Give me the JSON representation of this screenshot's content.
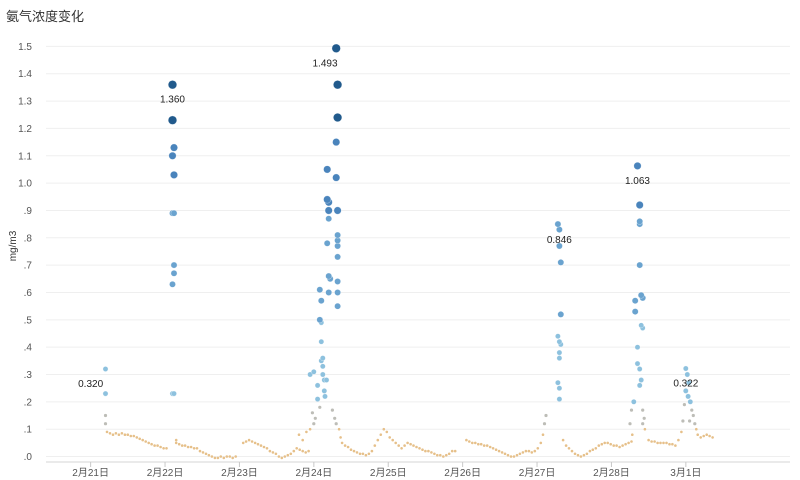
{
  "chart_data": {
    "type": "scatter",
    "title": "氨气浓度变化",
    "ylabel": "mg/m3",
    "xlabel": "",
    "ylim": [
      -0.02,
      1.56
    ],
    "xlim": [
      -0.6,
      9.4
    ],
    "grid": true,
    "legend": "none",
    "colors": {
      "low": "#e6c08a",
      "mid": "#bdbdb7",
      "light_blue": "#8dc1de",
      "blue": "#4a84bc",
      "dark_blue": "#215a8c"
    },
    "y_ticks": [
      {
        "value": 0.0,
        "label": ".0"
      },
      {
        "value": 0.1,
        "label": ".1"
      },
      {
        "value": 0.2,
        "label": ".2"
      },
      {
        "value": 0.3,
        "label": ".3"
      },
      {
        "value": 0.4,
        "label": ".4"
      },
      {
        "value": 0.5,
        "label": ".5"
      },
      {
        "value": 0.6,
        "label": ".6"
      },
      {
        "value": 0.7,
        "label": ".7"
      },
      {
        "value": 0.8,
        "label": ".8"
      },
      {
        "value": 0.9,
        "label": ".9"
      },
      {
        "value": 1.0,
        "label": "1.0"
      },
      {
        "value": 1.1,
        "label": "1.1"
      },
      {
        "value": 1.2,
        "label": "1.2"
      },
      {
        "value": 1.3,
        "label": "1.3"
      },
      {
        "value": 1.4,
        "label": "1.4"
      },
      {
        "value": 1.5,
        "label": "1.5"
      }
    ],
    "x_ticks": [
      {
        "value": 0,
        "label": "2月21日"
      },
      {
        "value": 1,
        "label": "2月22日"
      },
      {
        "value": 2,
        "label": "2月23日"
      },
      {
        "value": 3,
        "label": "2月24日"
      },
      {
        "value": 4,
        "label": "2月25日"
      },
      {
        "value": 5,
        "label": "2月26日"
      },
      {
        "value": 6,
        "label": "2月27日"
      },
      {
        "value": 7,
        "label": "2月28日"
      },
      {
        "value": 8,
        "label": "3月1日"
      }
    ],
    "annotations": [
      {
        "x": 0.0,
        "y": 0.32,
        "text": "0.320"
      },
      {
        "x": 1.1,
        "y": 1.36,
        "text": "1.360"
      },
      {
        "x": 3.15,
        "y": 1.493,
        "text": "1.493"
      },
      {
        "x": 6.3,
        "y": 0.846,
        "text": "0.846"
      },
      {
        "x": 7.35,
        "y": 1.063,
        "text": "1.063"
      },
      {
        "x": 8.0,
        "y": 0.322,
        "text": "0.322"
      }
    ],
    "points": [
      [
        0.2,
        0.32
      ],
      [
        0.2,
        0.23
      ],
      [
        0.2,
        0.15
      ],
      [
        0.2,
        0.12
      ],
      [
        0.22,
        0.09
      ],
      [
        0.26,
        0.085
      ],
      [
        0.3,
        0.08
      ],
      [
        0.34,
        0.085
      ],
      [
        0.38,
        0.08
      ],
      [
        0.42,
        0.085
      ],
      [
        0.46,
        0.08
      ],
      [
        0.5,
        0.08
      ],
      [
        0.54,
        0.075
      ],
      [
        0.58,
        0.075
      ],
      [
        0.62,
        0.07
      ],
      [
        0.66,
        0.065
      ],
      [
        0.7,
        0.06
      ],
      [
        0.74,
        0.055
      ],
      [
        0.78,
        0.05
      ],
      [
        0.82,
        0.045
      ],
      [
        0.86,
        0.04
      ],
      [
        0.9,
        0.04
      ],
      [
        0.94,
        0.035
      ],
      [
        0.98,
        0.03
      ],
      [
        1.02,
        0.03
      ],
      [
        1.1,
        1.36
      ],
      [
        1.1,
        1.23
      ],
      [
        1.12,
        1.13
      ],
      [
        1.1,
        1.1
      ],
      [
        1.12,
        1.03
      ],
      [
        1.1,
        0.89
      ],
      [
        1.12,
        0.89
      ],
      [
        1.12,
        0.7
      ],
      [
        1.12,
        0.67
      ],
      [
        1.1,
        0.63
      ],
      [
        1.1,
        0.23
      ],
      [
        1.12,
        0.23
      ],
      [
        1.15,
        0.06
      ],
      [
        1.15,
        0.05
      ],
      [
        1.19,
        0.045
      ],
      [
        1.23,
        0.04
      ],
      [
        1.27,
        0.04
      ],
      [
        1.31,
        0.035
      ],
      [
        1.35,
        0.035
      ],
      [
        1.39,
        0.03
      ],
      [
        1.43,
        0.03
      ],
      [
        1.47,
        0.02
      ],
      [
        1.51,
        0.015
      ],
      [
        1.55,
        0.01
      ],
      [
        1.59,
        0.005
      ],
      [
        1.63,
        0.0
      ],
      [
        1.67,
        -0.005
      ],
      [
        1.71,
        -0.005
      ],
      [
        1.75,
        0.0
      ],
      [
        1.79,
        -0.005
      ],
      [
        1.83,
        0.0
      ],
      [
        1.87,
        0.0
      ],
      [
        1.91,
        -0.005
      ],
      [
        1.95,
        0.0
      ],
      [
        2.05,
        0.05
      ],
      [
        2.09,
        0.055
      ],
      [
        2.13,
        0.06
      ],
      [
        2.17,
        0.055
      ],
      [
        2.21,
        0.05
      ],
      [
        2.25,
        0.045
      ],
      [
        2.29,
        0.04
      ],
      [
        2.33,
        0.035
      ],
      [
        2.37,
        0.03
      ],
      [
        2.41,
        0.02
      ],
      [
        2.45,
        0.015
      ],
      [
        2.49,
        0.01
      ],
      [
        2.53,
        0.0
      ],
      [
        2.57,
        -0.005
      ],
      [
        2.61,
        0.0
      ],
      [
        2.65,
        0.005
      ],
      [
        2.69,
        0.01
      ],
      [
        2.73,
        0.02
      ],
      [
        2.77,
        0.03
      ],
      [
        2.81,
        0.025
      ],
      [
        2.85,
        0.02
      ],
      [
        2.89,
        0.015
      ],
      [
        2.93,
        0.02
      ],
      [
        2.8,
        0.08
      ],
      [
        2.85,
        0.06
      ],
      [
        2.9,
        0.09
      ],
      [
        2.95,
        0.1
      ],
      [
        3.0,
        0.12
      ],
      [
        3.02,
        0.14
      ],
      [
        2.98,
        0.16
      ],
      [
        2.95,
        0.3
      ],
      [
        3.0,
        0.31
      ],
      [
        3.05,
        0.26
      ],
      [
        3.05,
        0.21
      ],
      [
        3.08,
        0.18
      ],
      [
        3.08,
        0.61
      ],
      [
        3.1,
        0.57
      ],
      [
        3.08,
        0.5
      ],
      [
        3.1,
        0.49
      ],
      [
        3.1,
        0.42
      ],
      [
        3.1,
        0.35
      ],
      [
        3.12,
        0.36
      ],
      [
        3.12,
        0.33
      ],
      [
        3.12,
        0.3
      ],
      [
        3.14,
        0.28
      ],
      [
        3.14,
        0.24
      ],
      [
        3.15,
        0.22
      ],
      [
        3.17,
        0.28
      ],
      [
        3.18,
        1.05
      ],
      [
        3.18,
        0.94
      ],
      [
        3.2,
        0.93
      ],
      [
        3.2,
        0.9
      ],
      [
        3.2,
        0.87
      ],
      [
        3.18,
        0.78
      ],
      [
        3.2,
        0.66
      ],
      [
        3.22,
        0.65
      ],
      [
        3.2,
        0.6
      ],
      [
        3.3,
        1.493
      ],
      [
        3.32,
        1.36
      ],
      [
        3.32,
        1.24
      ],
      [
        3.3,
        1.15
      ],
      [
        3.3,
        1.02
      ],
      [
        3.32,
        0.9
      ],
      [
        3.32,
        0.81
      ],
      [
        3.32,
        0.79
      ],
      [
        3.32,
        0.77
      ],
      [
        3.32,
        0.73
      ],
      [
        3.32,
        0.64
      ],
      [
        3.32,
        0.6
      ],
      [
        3.32,
        0.55
      ],
      [
        3.25,
        0.17
      ],
      [
        3.28,
        0.14
      ],
      [
        3.3,
        0.12
      ],
      [
        3.34,
        0.1
      ],
      [
        3.36,
        0.07
      ],
      [
        3.38,
        0.05
      ],
      [
        3.42,
        0.04
      ],
      [
        3.46,
        0.035
      ],
      [
        3.5,
        0.025
      ],
      [
        3.54,
        0.02
      ],
      [
        3.58,
        0.015
      ],
      [
        3.62,
        0.01
      ],
      [
        3.66,
        0.01
      ],
      [
        3.7,
        0.005
      ],
      [
        3.74,
        0.01
      ],
      [
        3.78,
        0.02
      ],
      [
        3.82,
        0.04
      ],
      [
        3.86,
        0.06
      ],
      [
        3.9,
        0.08
      ],
      [
        3.94,
        0.1
      ],
      [
        3.98,
        0.09
      ],
      [
        4.02,
        0.07
      ],
      [
        4.06,
        0.06
      ],
      [
        4.1,
        0.05
      ],
      [
        4.14,
        0.04
      ],
      [
        4.18,
        0.03
      ],
      [
        4.22,
        0.04
      ],
      [
        4.26,
        0.05
      ],
      [
        4.3,
        0.045
      ],
      [
        4.34,
        0.04
      ],
      [
        4.38,
        0.035
      ],
      [
        4.42,
        0.03
      ],
      [
        4.46,
        0.025
      ],
      [
        4.5,
        0.02
      ],
      [
        4.54,
        0.02
      ],
      [
        4.58,
        0.015
      ],
      [
        4.62,
        0.01
      ],
      [
        4.66,
        0.005
      ],
      [
        4.7,
        0.005
      ],
      [
        4.74,
        0.0
      ],
      [
        4.78,
        0.005
      ],
      [
        4.82,
        0.01
      ],
      [
        4.86,
        0.02
      ],
      [
        4.9,
        0.02
      ],
      [
        5.05,
        0.06
      ],
      [
        5.09,
        0.055
      ],
      [
        5.13,
        0.05
      ],
      [
        5.17,
        0.05
      ],
      [
        5.21,
        0.045
      ],
      [
        5.25,
        0.045
      ],
      [
        5.29,
        0.04
      ],
      [
        5.33,
        0.04
      ],
      [
        5.37,
        0.035
      ],
      [
        5.41,
        0.03
      ],
      [
        5.45,
        0.025
      ],
      [
        5.49,
        0.02
      ],
      [
        5.53,
        0.015
      ],
      [
        5.57,
        0.01
      ],
      [
        5.61,
        0.005
      ],
      [
        5.65,
        0.0
      ],
      [
        5.69,
        0.0
      ],
      [
        5.73,
        0.005
      ],
      [
        5.77,
        0.01
      ],
      [
        5.81,
        0.015
      ],
      [
        5.85,
        0.02
      ],
      [
        5.89,
        0.02
      ],
      [
        5.93,
        0.015
      ],
      [
        5.97,
        0.02
      ],
      [
        6.01,
        0.03
      ],
      [
        6.05,
        0.05
      ],
      [
        6.08,
        0.08
      ],
      [
        6.1,
        0.12
      ],
      [
        6.12,
        0.15
      ],
      [
        6.28,
        0.85
      ],
      [
        6.3,
        0.83
      ],
      [
        6.3,
        0.77
      ],
      [
        6.32,
        0.71
      ],
      [
        6.32,
        0.52
      ],
      [
        6.28,
        0.44
      ],
      [
        6.3,
        0.42
      ],
      [
        6.32,
        0.41
      ],
      [
        6.3,
        0.38
      ],
      [
        6.3,
        0.36
      ],
      [
        6.28,
        0.27
      ],
      [
        6.3,
        0.25
      ],
      [
        6.3,
        0.21
      ],
      [
        6.35,
        0.06
      ],
      [
        6.39,
        0.04
      ],
      [
        6.43,
        0.03
      ],
      [
        6.47,
        0.02
      ],
      [
        6.51,
        0.01
      ],
      [
        6.55,
        0.005
      ],
      [
        6.59,
        0.0
      ],
      [
        6.63,
        0.005
      ],
      [
        6.67,
        0.01
      ],
      [
        6.71,
        0.02
      ],
      [
        6.75,
        0.025
      ],
      [
        6.79,
        0.03
      ],
      [
        6.83,
        0.04
      ],
      [
        6.87,
        0.045
      ],
      [
        6.91,
        0.05
      ],
      [
        6.95,
        0.05
      ],
      [
        6.99,
        0.045
      ],
      [
        7.03,
        0.04
      ],
      [
        7.07,
        0.04
      ],
      [
        7.11,
        0.035
      ],
      [
        7.15,
        0.04
      ],
      [
        7.19,
        0.045
      ],
      [
        7.23,
        0.05
      ],
      [
        7.27,
        0.055
      ],
      [
        7.25,
        0.12
      ],
      [
        7.27,
        0.17
      ],
      [
        7.3,
        0.2
      ],
      [
        7.28,
        0.08
      ],
      [
        7.35,
        1.063
      ],
      [
        7.38,
        0.92
      ],
      [
        7.38,
        0.86
      ],
      [
        7.38,
        0.85
      ],
      [
        7.38,
        0.7
      ],
      [
        7.4,
        0.59
      ],
      [
        7.42,
        0.58
      ],
      [
        7.32,
        0.57
      ],
      [
        7.4,
        0.48
      ],
      [
        7.42,
        0.47
      ],
      [
        7.32,
        0.53
      ],
      [
        7.35,
        0.4
      ],
      [
        7.35,
        0.34
      ],
      [
        7.38,
        0.32
      ],
      [
        7.4,
        0.28
      ],
      [
        7.38,
        0.26
      ],
      [
        7.42,
        0.17
      ],
      [
        7.44,
        0.14
      ],
      [
        7.42,
        0.12
      ],
      [
        7.45,
        0.1
      ],
      [
        7.5,
        0.06
      ],
      [
        7.54,
        0.055
      ],
      [
        7.58,
        0.055
      ],
      [
        7.62,
        0.05
      ],
      [
        7.66,
        0.05
      ],
      [
        7.7,
        0.05
      ],
      [
        7.74,
        0.05
      ],
      [
        7.78,
        0.045
      ],
      [
        7.82,
        0.045
      ],
      [
        7.86,
        0.04
      ],
      [
        7.9,
        0.06
      ],
      [
        7.94,
        0.09
      ],
      [
        7.96,
        0.13
      ],
      [
        7.98,
        0.19
      ],
      [
        8.0,
        0.322
      ],
      [
        8.02,
        0.3
      ],
      [
        8.04,
        0.27
      ],
      [
        8.0,
        0.24
      ],
      [
        8.03,
        0.22
      ],
      [
        8.06,
        0.2
      ],
      [
        8.08,
        0.17
      ],
      [
        8.1,
        0.15
      ],
      [
        8.05,
        0.13
      ],
      [
        8.12,
        0.12
      ],
      [
        8.14,
        0.1
      ],
      [
        8.16,
        0.08
      ],
      [
        8.2,
        0.07
      ],
      [
        8.24,
        0.075
      ],
      [
        8.28,
        0.08
      ],
      [
        8.32,
        0.075
      ],
      [
        8.36,
        0.07
      ]
    ]
  }
}
